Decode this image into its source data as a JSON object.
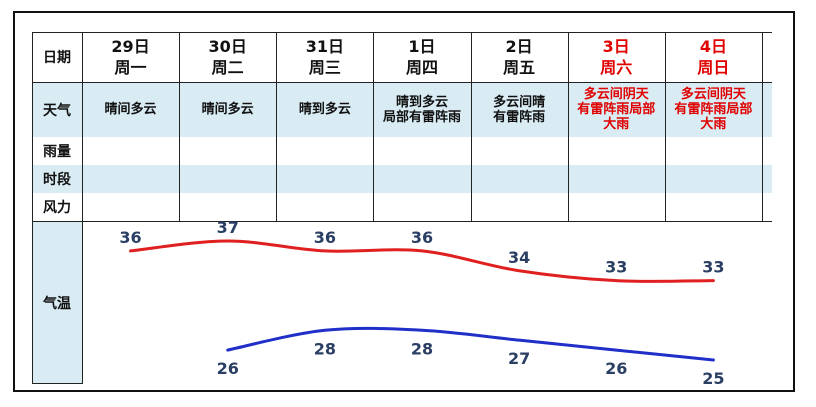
{
  "row_labels": {
    "date": "日期",
    "weather": "天气",
    "rain1": "雨量",
    "rain2": "时段",
    "wind": "风力",
    "temp": "气温"
  },
  "days": [
    {
      "date": "29日",
      "weekday": "周一",
      "weather": [
        "晴间多云"
      ],
      "weekend": false
    },
    {
      "date": "30日",
      "weekday": "周二",
      "weather": [
        "晴间多云"
      ],
      "weekend": false
    },
    {
      "date": "31日",
      "weekday": "周三",
      "weather": [
        "晴到多云"
      ],
      "weekend": false
    },
    {
      "date": "1日",
      "weekday": "周四",
      "weather": [
        "晴到多云",
        "局部有雷阵雨"
      ],
      "weekend": false
    },
    {
      "date": "2日",
      "weekday": "周五",
      "weather": [
        "多云间晴",
        "有雷阵雨"
      ],
      "weekend": false
    },
    {
      "date": "3日",
      "weekday": "周六",
      "weather": [
        "多云间阴天",
        "有雷阵雨局部",
        "大雨"
      ],
      "weekend": true
    },
    {
      "date": "4日",
      "weekday": "周日",
      "weather": [
        "多云间阴天",
        "有雷阵雨局部",
        "大雨"
      ],
      "weekend": true
    }
  ],
  "colors": {
    "header_bg": "#ffffff",
    "band_bg": "#d9ecf4",
    "high_line": "#e02020",
    "low_line": "#1f2fc8",
    "weekend_text": "#e00000",
    "value_text": "#2a3f63"
  },
  "chart_data": {
    "type": "line",
    "categories": [
      "29日",
      "30日",
      "31日",
      "1日",
      "2日",
      "3日",
      "4日"
    ],
    "series": [
      {
        "values": [
          36,
          37,
          36,
          36,
          34,
          33,
          33
        ]
      },
      {
        "values": [
          null,
          26,
          28,
          28,
          27,
          26,
          25
        ]
      }
    ],
    "grid": false
  }
}
